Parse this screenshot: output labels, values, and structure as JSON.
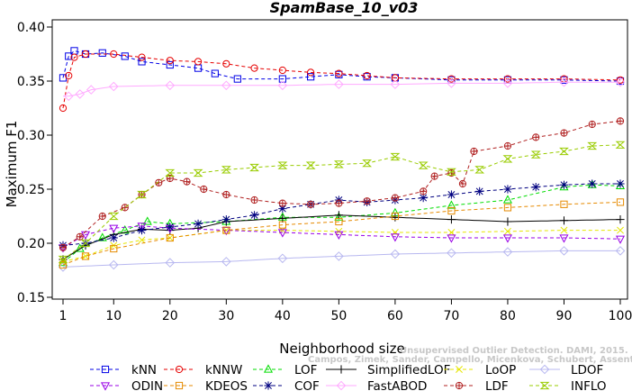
{
  "chart_data": {
    "type": "line",
    "title": "SpamBase_10_v03",
    "xlabel": "Neighborhood size",
    "ylabel": "Maximum F1",
    "xlim": [
      1,
      100
    ],
    "ylim": [
      0.15,
      0.4
    ],
    "xticks": [
      1,
      10,
      20,
      30,
      40,
      50,
      60,
      70,
      80,
      90,
      100
    ],
    "yticks": [
      0.15,
      0.2,
      0.25,
      0.3,
      0.35,
      0.4
    ],
    "ytick_labels": [
      "0.15",
      "0.20",
      "0.25",
      "0.30",
      "0.35",
      "0.40"
    ],
    "legend_position": "bottom",
    "watermark": [
      "Unsupervised Outlier Detection. DAMI, 2015.",
      "Campos, Zimek, Sander, Campello, Micenkova, Schubert, Assent, Houle"
    ],
    "series": [
      {
        "name": "kNN",
        "color": "#0000e6",
        "marker": "square",
        "dash": "4,3",
        "points": [
          [
            1,
            0.353
          ],
          [
            2,
            0.373
          ],
          [
            3,
            0.378
          ],
          [
            5,
            0.375
          ],
          [
            8,
            0.376
          ],
          [
            12,
            0.373
          ],
          [
            15,
            0.368
          ],
          [
            20,
            0.365
          ],
          [
            25,
            0.362
          ],
          [
            28,
            0.357
          ],
          [
            32,
            0.352
          ],
          [
            40,
            0.352
          ],
          [
            45,
            0.354
          ],
          [
            50,
            0.356
          ],
          [
            55,
            0.354
          ],
          [
            60,
            0.353
          ],
          [
            70,
            0.351
          ],
          [
            80,
            0.351
          ],
          [
            90,
            0.351
          ],
          [
            100,
            0.35
          ]
        ]
      },
      {
        "name": "kNNW",
        "color": "#e60000",
        "marker": "circle",
        "dash": "4,3",
        "points": [
          [
            1,
            0.325
          ],
          [
            2,
            0.355
          ],
          [
            3,
            0.372
          ],
          [
            5,
            0.375
          ],
          [
            10,
            0.375
          ],
          [
            15,
            0.372
          ],
          [
            20,
            0.369
          ],
          [
            25,
            0.368
          ],
          [
            30,
            0.366
          ],
          [
            35,
            0.362
          ],
          [
            40,
            0.36
          ],
          [
            45,
            0.358
          ],
          [
            50,
            0.357
          ],
          [
            55,
            0.355
          ],
          [
            60,
            0.353
          ],
          [
            70,
            0.352
          ],
          [
            80,
            0.352
          ],
          [
            90,
            0.352
          ],
          [
            100,
            0.351
          ]
        ]
      },
      {
        "name": "LOF",
        "color": "#00dd00",
        "marker": "triangle-up",
        "dash": "4,3",
        "points": [
          [
            1,
            0.182
          ],
          [
            4,
            0.195
          ],
          [
            8,
            0.205
          ],
          [
            12,
            0.212
          ],
          [
            16,
            0.22
          ],
          [
            20,
            0.218
          ],
          [
            30,
            0.22
          ],
          [
            40,
            0.224
          ],
          [
            50,
            0.224
          ],
          [
            60,
            0.228
          ],
          [
            70,
            0.235
          ],
          [
            80,
            0.24
          ],
          [
            90,
            0.252
          ],
          [
            95,
            0.254
          ],
          [
            100,
            0.253
          ]
        ]
      },
      {
        "name": "SimplifiedLOF",
        "color": "#000000",
        "marker": "plus",
        "dash": "",
        "points": [
          [
            1,
            0.185
          ],
          [
            5,
            0.198
          ],
          [
            10,
            0.208
          ],
          [
            15,
            0.213
          ],
          [
            20,
            0.212
          ],
          [
            25,
            0.214
          ],
          [
            30,
            0.22
          ],
          [
            40,
            0.223
          ],
          [
            50,
            0.226
          ],
          [
            60,
            0.224
          ],
          [
            70,
            0.222
          ],
          [
            80,
            0.22
          ],
          [
            90,
            0.221
          ],
          [
            100,
            0.222
          ]
        ]
      },
      {
        "name": "LoOP",
        "color": "#e6e600",
        "marker": "x",
        "dash": "4,3",
        "points": [
          [
            1,
            0.183
          ],
          [
            5,
            0.188
          ],
          [
            10,
            0.198
          ],
          [
            15,
            0.203
          ],
          [
            20,
            0.205
          ],
          [
            30,
            0.212
          ],
          [
            40,
            0.212
          ],
          [
            50,
            0.211
          ],
          [
            60,
            0.21
          ],
          [
            70,
            0.21
          ],
          [
            80,
            0.211
          ],
          [
            90,
            0.212
          ],
          [
            100,
            0.212
          ]
        ]
      },
      {
        "name": "LDOF",
        "color": "#b8b8f0",
        "marker": "diamond",
        "dash": "",
        "points": [
          [
            1,
            0.178
          ],
          [
            10,
            0.18
          ],
          [
            20,
            0.182
          ],
          [
            30,
            0.183
          ],
          [
            40,
            0.186
          ],
          [
            50,
            0.188
          ],
          [
            60,
            0.19
          ],
          [
            70,
            0.191
          ],
          [
            80,
            0.192
          ],
          [
            90,
            0.193
          ],
          [
            100,
            0.193
          ]
        ]
      },
      {
        "name": "ODIN",
        "color": "#9900e6",
        "marker": "triangle-down",
        "dash": "4,3",
        "points": [
          [
            1,
            0.196
          ],
          [
            5,
            0.208
          ],
          [
            10,
            0.214
          ],
          [
            15,
            0.216
          ],
          [
            20,
            0.214
          ],
          [
            30,
            0.212
          ],
          [
            40,
            0.21
          ],
          [
            50,
            0.208
          ],
          [
            60,
            0.206
          ],
          [
            70,
            0.205
          ],
          [
            80,
            0.205
          ],
          [
            90,
            0.205
          ],
          [
            100,
            0.204
          ]
        ]
      },
      {
        "name": "KDEOS",
        "color": "#e68a00",
        "marker": "square",
        "dash": "4,3",
        "points": [
          [
            1,
            0.18
          ],
          [
            5,
            0.188
          ],
          [
            10,
            0.195
          ],
          [
            20,
            0.205
          ],
          [
            30,
            0.212
          ],
          [
            40,
            0.217
          ],
          [
            50,
            0.22
          ],
          [
            60,
            0.225
          ],
          [
            70,
            0.23
          ],
          [
            80,
            0.233
          ],
          [
            90,
            0.236
          ],
          [
            100,
            0.238
          ]
        ]
      },
      {
        "name": "COF",
        "color": "#000080",
        "marker": "star",
        "dash": "4,3",
        "points": [
          [
            1,
            0.198
          ],
          [
            5,
            0.2
          ],
          [
            10,
            0.205
          ],
          [
            15,
            0.212
          ],
          [
            20,
            0.215
          ],
          [
            25,
            0.218
          ],
          [
            30,
            0.222
          ],
          [
            35,
            0.226
          ],
          [
            40,
            0.232
          ],
          [
            45,
            0.236
          ],
          [
            50,
            0.24
          ],
          [
            55,
            0.238
          ],
          [
            60,
            0.24
          ],
          [
            65,
            0.242
          ],
          [
            70,
            0.245
          ],
          [
            75,
            0.248
          ],
          [
            80,
            0.25
          ],
          [
            85,
            0.252
          ],
          [
            90,
            0.254
          ],
          [
            95,
            0.255
          ],
          [
            100,
            0.255
          ]
        ]
      },
      {
        "name": "FastABOD",
        "color": "#ffaaff",
        "marker": "diamond",
        "dash": "",
        "points": [
          [
            2,
            0.336
          ],
          [
            4,
            0.338
          ],
          [
            6,
            0.342
          ],
          [
            10,
            0.345
          ],
          [
            20,
            0.346
          ],
          [
            30,
            0.346
          ],
          [
            40,
            0.346
          ],
          [
            50,
            0.347
          ],
          [
            60,
            0.347
          ],
          [
            70,
            0.348
          ],
          [
            80,
            0.348
          ],
          [
            90,
            0.349
          ],
          [
            100,
            0.349
          ]
        ]
      },
      {
        "name": "LDF",
        "color": "#b02020",
        "marker": "circle-plus",
        "dash": "4,3",
        "points": [
          [
            1,
            0.196
          ],
          [
            4,
            0.206
          ],
          [
            8,
            0.225
          ],
          [
            12,
            0.233
          ],
          [
            15,
            0.245
          ],
          [
            18,
            0.256
          ],
          [
            20,
            0.26
          ],
          [
            23,
            0.257
          ],
          [
            26,
            0.25
          ],
          [
            30,
            0.245
          ],
          [
            35,
            0.24
          ],
          [
            40,
            0.237
          ],
          [
            45,
            0.236
          ],
          [
            50,
            0.237
          ],
          [
            55,
            0.239
          ],
          [
            60,
            0.242
          ],
          [
            65,
            0.248
          ],
          [
            67,
            0.262
          ],
          [
            70,
            0.265
          ],
          [
            72,
            0.255
          ],
          [
            74,
            0.285
          ],
          [
            80,
            0.29
          ],
          [
            85,
            0.298
          ],
          [
            90,
            0.302
          ],
          [
            95,
            0.31
          ],
          [
            100,
            0.313
          ]
        ]
      },
      {
        "name": "INFLO",
        "color": "#99cc00",
        "marker": "hourglass",
        "dash": "4,3",
        "points": [
          [
            1,
            0.185
          ],
          [
            5,
            0.2
          ],
          [
            10,
            0.225
          ],
          [
            15,
            0.245
          ],
          [
            20,
            0.265
          ],
          [
            25,
            0.265
          ],
          [
            30,
            0.268
          ],
          [
            35,
            0.27
          ],
          [
            40,
            0.272
          ],
          [
            45,
            0.272
          ],
          [
            50,
            0.273
          ],
          [
            55,
            0.274
          ],
          [
            60,
            0.28
          ],
          [
            65,
            0.272
          ],
          [
            70,
            0.266
          ],
          [
            75,
            0.268
          ],
          [
            80,
            0.278
          ],
          [
            85,
            0.282
          ],
          [
            90,
            0.285
          ],
          [
            95,
            0.29
          ],
          [
            100,
            0.291
          ]
        ]
      }
    ]
  }
}
